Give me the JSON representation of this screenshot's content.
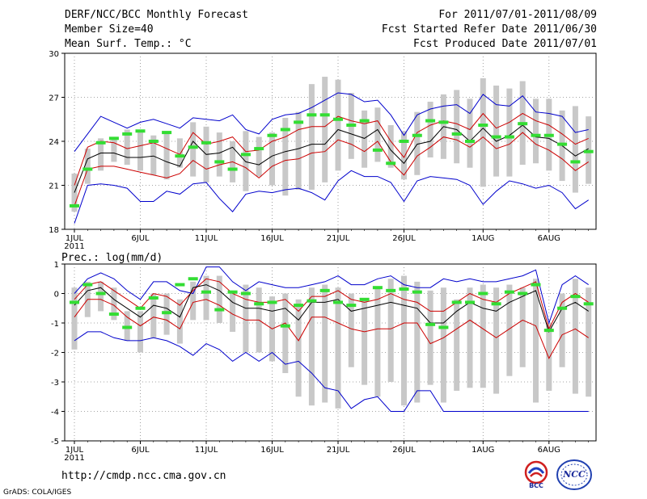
{
  "header": {
    "title": "DERF/NCC/BCC Monthly Forecast",
    "member_size": "Member Size=40",
    "variable": "Mean Surf. Temp.: °C",
    "period": "For 2011/07/01-2011/08/09",
    "start_date": "Fcst Started Refer Date 2011/06/30",
    "produced_date": "Fcst Produced Date 2011/07/01"
  },
  "footer": {
    "url": "http://cmdp.ncc.cma.gov.cn",
    "credit": "GrADS: COLA/IGES",
    "logo_bcc": "BCC",
    "logo_ncc": "NCC"
  },
  "colors": {
    "envelope": "#0000cc",
    "spread": "#cc0000",
    "mean": "#000000",
    "box": "#c8c8c8",
    "observed": "#33dd33",
    "grid": "#888888"
  },
  "chart_data": [
    {
      "type": "line",
      "name": "temperature",
      "title": "Mean Surf. Temp.: °C",
      "ylim": [
        18,
        30
      ],
      "yticks": [
        18,
        21,
        24,
        27,
        30
      ],
      "xticks": [
        {
          "day": 1,
          "label": "1JUL"
        },
        {
          "day": 6,
          "label": "6JUL"
        },
        {
          "day": 11,
          "label": "11JUL"
        },
        {
          "day": 16,
          "label": "16JUL"
        },
        {
          "day": 21,
          "label": "21JUL"
        },
        {
          "day": 26,
          "label": "26JUL"
        },
        {
          "day": 32,
          "label": "1AUG"
        },
        {
          "day": 37,
          "label": "6AUG"
        }
      ],
      "year_label": "2011",
      "days": 40,
      "series": [
        {
          "name": "max",
          "values": [
            23.3,
            24.5,
            25.7,
            25.3,
            24.9,
            25.3,
            25.5,
            25.2,
            24.9,
            25.6,
            25.5,
            25.4,
            25.8,
            24.8,
            24.5,
            25.5,
            25.8,
            25.9,
            26.3,
            26.8,
            27.3,
            27.2,
            26.7,
            26.8,
            25.8,
            24.4,
            25.8,
            26.2,
            26.4,
            26.5,
            25.9,
            27.2,
            26.5,
            26.4,
            27.1,
            26.0,
            25.9,
            25.7,
            24.6,
            24.8
          ]
        },
        {
          "name": "upper",
          "values": [
            21.0,
            23.6,
            24.0,
            23.9,
            23.5,
            23.7,
            23.9,
            23.5,
            23.1,
            24.6,
            23.8,
            24.0,
            24.3,
            23.3,
            23.4,
            24.0,
            24.3,
            24.8,
            25.0,
            25.0,
            25.7,
            25.4,
            25.2,
            25.4,
            24.0,
            22.9,
            24.6,
            25.1,
            25.4,
            25.2,
            24.8,
            25.9,
            24.9,
            25.3,
            25.9,
            25.4,
            25.1,
            24.5,
            23.8,
            24.2
          ]
        },
        {
          "name": "mean",
          "values": [
            20.5,
            22.8,
            23.2,
            23.2,
            22.9,
            22.9,
            23.0,
            22.6,
            22.3,
            24.0,
            23.1,
            23.2,
            23.6,
            22.6,
            22.4,
            23.0,
            23.3,
            23.5,
            23.8,
            23.8,
            24.8,
            24.5,
            24.2,
            24.8,
            23.4,
            22.5,
            23.8,
            24.0,
            25.0,
            24.8,
            24.0,
            24.9,
            24.0,
            24.4,
            25.1,
            24.3,
            24.2,
            23.7,
            23.0,
            23.5
          ]
        },
        {
          "name": "lower",
          "values": [
            19.6,
            22.1,
            22.3,
            22.3,
            22.1,
            21.9,
            21.7,
            21.5,
            21.8,
            22.7,
            22.1,
            22.4,
            22.6,
            22.2,
            21.5,
            22.3,
            22.7,
            22.8,
            23.2,
            23.3,
            24.1,
            23.8,
            23.3,
            24.0,
            22.6,
            21.7,
            23.0,
            23.6,
            24.3,
            24.1,
            23.6,
            24.3,
            23.5,
            23.8,
            24.6,
            23.8,
            23.4,
            22.8,
            22.0,
            22.6
          ]
        },
        {
          "name": "min",
          "values": [
            18.4,
            21.0,
            21.1,
            21.0,
            20.8,
            19.9,
            19.9,
            20.6,
            20.4,
            21.1,
            21.2,
            20.1,
            19.2,
            20.4,
            20.6,
            20.5,
            20.7,
            20.8,
            20.5,
            20.0,
            21.3,
            22.0,
            21.6,
            21.6,
            21.2,
            19.9,
            21.3,
            21.6,
            21.5,
            21.4,
            21.0,
            19.7,
            20.6,
            21.3,
            21.1,
            20.8,
            21.0,
            20.5,
            19.4,
            20.0
          ]
        }
      ],
      "boxes": [
        [
          19.2,
          21.8
        ],
        [
          21.1,
          23.5
        ],
        [
          22.0,
          24.2
        ],
        [
          22.6,
          24.3
        ],
        [
          22.4,
          24.8
        ],
        [
          22.0,
          24.6
        ],
        [
          21.7,
          24.4
        ],
        [
          21.4,
          24.6
        ],
        [
          22.2,
          24.2
        ],
        [
          21.6,
          25.3
        ],
        [
          21.2,
          25.0
        ],
        [
          21.6,
          24.6
        ],
        [
          21.2,
          24.0
        ],
        [
          20.6,
          24.7
        ],
        [
          21.6,
          24.3
        ],
        [
          21.0,
          24.6
        ],
        [
          20.3,
          25.6
        ],
        [
          20.7,
          26.0
        ],
        [
          20.7,
          27.9
        ],
        [
          21.2,
          28.4
        ],
        [
          22.0,
          28.2
        ],
        [
          22.8,
          27.3
        ],
        [
          22.2,
          26.1
        ],
        [
          22.6,
          26.3
        ],
        [
          22.2,
          25.1
        ],
        [
          21.4,
          24.7
        ],
        [
          21.7,
          26.0
        ],
        [
          22.9,
          26.7
        ],
        [
          22.8,
          27.2
        ],
        [
          22.5,
          27.5
        ],
        [
          22.2,
          26.9
        ],
        [
          20.9,
          28.3
        ],
        [
          21.6,
          27.8
        ],
        [
          21.6,
          27.6
        ],
        [
          22.4,
          28.1
        ],
        [
          22.5,
          26.9
        ],
        [
          22.0,
          26.9
        ],
        [
          21.3,
          26.1
        ],
        [
          20.5,
          26.4
        ],
        [
          21.1,
          25.7
        ]
      ],
      "observed": [
        19.6,
        22.1,
        23.9,
        24.2,
        24.5,
        24.7,
        24.0,
        24.6,
        23.0,
        23.6,
        23.9,
        22.6,
        22.1,
        23.1,
        23.5,
        24.4,
        24.8,
        25.3,
        25.8,
        25.8,
        25.5,
        25.1,
        25.4,
        23.4,
        22.5,
        24.0,
        24.4,
        25.4,
        25.3,
        24.5,
        24.0,
        25.1,
        24.3,
        24.3,
        25.2,
        24.4,
        24.4,
        23.8,
        22.6,
        23.3
      ]
    },
    {
      "type": "line",
      "name": "precipitation",
      "title": "Prec.: log(mm/d)",
      "ylim": [
        -5,
        1
      ],
      "yticks": [
        -5,
        -4,
        -3,
        -2,
        -1,
        0,
        1
      ],
      "xticks": [
        {
          "day": 1,
          "label": "1JUL"
        },
        {
          "day": 6,
          "label": "6JUL"
        },
        {
          "day": 11,
          "label": "11JUL"
        },
        {
          "day": 16,
          "label": "16JUL"
        },
        {
          "day": 21,
          "label": "21JUL"
        },
        {
          "day": 26,
          "label": "26JUL"
        },
        {
          "day": 32,
          "label": "1AUG"
        },
        {
          "day": 37,
          "label": "6AUG"
        }
      ],
      "year_label": "2011",
      "days": 40,
      "series": [
        {
          "name": "max",
          "values": [
            0.0,
            0.5,
            0.7,
            0.5,
            0.1,
            -0.2,
            0.4,
            0.4,
            0.1,
            0.0,
            0.9,
            0.9,
            0.4,
            0.1,
            0.4,
            0.3,
            0.2,
            0.2,
            0.3,
            0.4,
            0.6,
            0.3,
            0.3,
            0.5,
            0.6,
            0.3,
            0.2,
            0.2,
            0.5,
            0.4,
            0.5,
            0.4,
            0.4,
            0.5,
            0.6,
            0.8,
            -1.0,
            0.3,
            0.6,
            0.3
          ]
        },
        {
          "name": "upper",
          "values": [
            -0.2,
            0.3,
            0.4,
            0.1,
            -0.2,
            -0.5,
            0.0,
            -0.1,
            -0.4,
            0.1,
            0.5,
            0.4,
            0.0,
            -0.2,
            -0.3,
            -0.3,
            -0.2,
            -0.6,
            -0.1,
            -0.1,
            0.1,
            -0.2,
            -0.3,
            -0.2,
            0.0,
            -0.2,
            -0.3,
            -0.6,
            -0.6,
            -0.3,
            0.0,
            -0.2,
            -0.3,
            0.0,
            0.2,
            0.4,
            -1.2,
            -0.3,
            0.0,
            -0.3
          ]
        },
        {
          "name": "mean",
          "values": [
            -0.4,
            0.1,
            0.2,
            -0.2,
            -0.5,
            -0.8,
            -0.4,
            -0.5,
            -0.8,
            0.2,
            0.3,
            0.1,
            -0.3,
            -0.5,
            -0.5,
            -0.6,
            -0.5,
            -0.9,
            -0.3,
            -0.3,
            -0.2,
            -0.6,
            -0.5,
            -0.4,
            -0.3,
            -0.4,
            -0.5,
            -1.0,
            -1.0,
            -0.6,
            -0.3,
            -0.5,
            -0.6,
            -0.3,
            -0.1,
            0.1,
            -1.3,
            -0.5,
            -0.3,
            -0.6
          ]
        },
        {
          "name": "lower",
          "values": [
            -0.8,
            -0.2,
            -0.2,
            -0.4,
            -0.8,
            -1.1,
            -0.8,
            -0.9,
            -1.2,
            -0.3,
            -0.2,
            -0.4,
            -0.7,
            -0.9,
            -0.9,
            -1.2,
            -1.0,
            -1.6,
            -0.8,
            -0.8,
            -1.0,
            -1.2,
            -1.3,
            -1.2,
            -1.2,
            -1.0,
            -1.0,
            -1.7,
            -1.5,
            -1.2,
            -0.9,
            -1.2,
            -1.5,
            -1.2,
            -0.9,
            -1.1,
            -2.2,
            -1.4,
            -1.2,
            -1.5
          ]
        },
        {
          "name": "min",
          "values": [
            -1.6,
            -1.3,
            -1.3,
            -1.5,
            -1.6,
            -1.6,
            -1.5,
            -1.6,
            -1.8,
            -2.1,
            -1.7,
            -1.9,
            -2.3,
            -2.0,
            -2.3,
            -2.0,
            -2.4,
            -2.3,
            -2.7,
            -3.2,
            -3.3,
            -3.9,
            -3.6,
            -3.5,
            -4.0,
            -4.0,
            -3.3,
            -3.3,
            -4.0,
            -4.0,
            -4.0,
            -4.0,
            -4.0,
            -4.0,
            -4.0,
            -4.0,
            -4.0,
            -4.0,
            -4.0,
            -4.0
          ]
        }
      ],
      "boxes": [
        [
          -1.9,
          0.2
        ],
        [
          -0.8,
          0.4
        ],
        [
          -0.6,
          0.4
        ],
        [
          -0.9,
          0.2
        ],
        [
          -1.6,
          -0.6
        ],
        [
          -2.0,
          -0.6
        ],
        [
          -1.5,
          0.0
        ],
        [
          -1.4,
          0.0
        ],
        [
          -1.7,
          -0.2
        ],
        [
          -0.9,
          0.4
        ],
        [
          -0.9,
          0.6
        ],
        [
          -1.0,
          0.6
        ],
        [
          -1.3,
          0.1
        ],
        [
          -2.0,
          0.3
        ],
        [
          -2.0,
          0.2
        ],
        [
          -2.3,
          -0.1
        ],
        [
          -2.7,
          0.0
        ],
        [
          -3.5,
          -0.2
        ],
        [
          -3.8,
          0.2
        ],
        [
          -3.7,
          0.3
        ],
        [
          -3.9,
          0.2
        ],
        [
          -2.5,
          0.0
        ],
        [
          -3.1,
          -0.2
        ],
        [
          -3.5,
          0.2
        ],
        [
          -3.0,
          0.5
        ],
        [
          -3.8,
          0.6
        ],
        [
          -3.7,
          0.4
        ],
        [
          -3.1,
          0.1
        ],
        [
          -3.7,
          0.2
        ],
        [
          -3.3,
          -0.2
        ],
        [
          -3.2,
          0.2
        ],
        [
          -3.2,
          0.3
        ],
        [
          -3.4,
          0.2
        ],
        [
          -2.8,
          0.3
        ],
        [
          -2.5,
          0.2
        ],
        [
          -3.7,
          0.5
        ],
        [
          -3.3,
          -1.0
        ],
        [
          -2.5,
          0.0
        ],
        [
          -3.4,
          0.5
        ],
        [
          -3.5,
          0.2
        ]
      ],
      "observed": [
        -0.3,
        0.3,
        0.0,
        -0.7,
        -1.15,
        -0.5,
        -0.15,
        -0.65,
        0.3,
        0.5,
        0.05,
        -0.55,
        0.05,
        0.0,
        -0.35,
        -0.3,
        -1.1,
        -0.4,
        -0.25,
        0.1,
        -0.3,
        -0.4,
        -0.2,
        0.2,
        0.1,
        0.15,
        0.05,
        -1.05,
        -1.15,
        -0.3,
        -0.3,
        0.0,
        -0.35,
        0.05,
        0.0,
        0.3,
        -1.25,
        -0.5,
        -0.1,
        -0.35
      ]
    }
  ]
}
